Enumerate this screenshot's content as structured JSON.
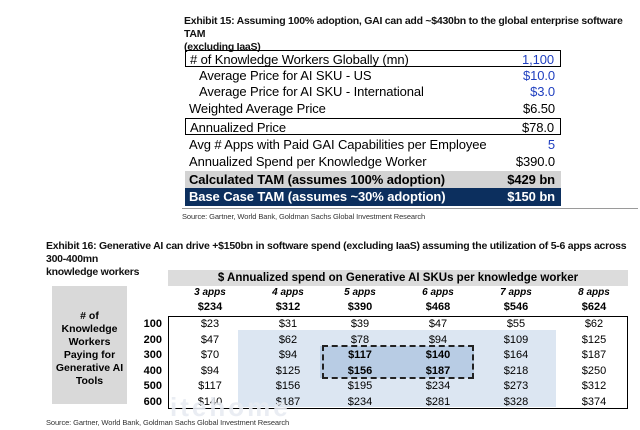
{
  "exhibit15": {
    "title_line1": "Exhibit 15: Assuming 100% adoption, GAI can add ~$430bn to the global enterprise software TAM",
    "title_line2": "(excluding IaaS)",
    "rows": [
      {
        "label": "# of Knowledge Workers Globally (mn)",
        "value": "1,100"
      },
      {
        "label": "Average Price for AI SKU - US",
        "value": "$10.0"
      },
      {
        "label": "Average Price for AI SKU - International",
        "value": "$3.0"
      },
      {
        "label": "Weighted Average Price",
        "value": "$6.50"
      },
      {
        "label": "Annualized Price",
        "value": "$78.0"
      },
      {
        "label": "Avg # Apps with Paid GAI Capabilities per Employee",
        "value": "5"
      },
      {
        "label": "Annualized Spend per Knowledge Worker",
        "value": "$390.0"
      },
      {
        "label": "Calculated TAM (assumes 100% adoption)",
        "value": "$429 bn"
      },
      {
        "label": "Base Case TAM (assumes ~30% adoption)",
        "value": "$150 bn"
      }
    ],
    "source": "Source: Gartner, World Bank, Goldman Sachs Global Investment Research"
  },
  "exhibit16": {
    "title_line1": "Exhibit 16: Generative AI can drive +$150bn in software spend (excluding IaaS) assuming the utilization of 5-6 apps across 300-400mn",
    "title_line2": "knowledge workers",
    "header": "$ Annualized spend on Generative AI SKUs per knowledge worker",
    "columns": [
      {
        "label": "3 apps",
        "value": "$234"
      },
      {
        "label": "4 apps",
        "value": "$312"
      },
      {
        "label": "5 apps",
        "value": "$390"
      },
      {
        "label": "6 apps",
        "value": "$468"
      },
      {
        "label": "7 apps",
        "value": "$546"
      },
      {
        "label": "8 apps",
        "value": "$624"
      }
    ],
    "side_label": [
      "# of",
      "Knowledge",
      "Workers",
      "Paying for",
      "Generative AI",
      "Tools"
    ],
    "rows": [
      {
        "label": "100",
        "cells": [
          "$23",
          "$31",
          "$39",
          "$47",
          "$55",
          "$62"
        ]
      },
      {
        "label": "200",
        "cells": [
          "$47",
          "$62",
          "$78",
          "$94",
          "$109",
          "$125"
        ]
      },
      {
        "label": "300",
        "cells": [
          "$70",
          "$94",
          "$117",
          "$140",
          "$164",
          "$187"
        ]
      },
      {
        "label": "400",
        "cells": [
          "$94",
          "$125",
          "$156",
          "$187",
          "$218",
          "$250"
        ]
      },
      {
        "label": "500",
        "cells": [
          "$117",
          "$156",
          "$195",
          "$234",
          "$273",
          "$312"
        ]
      },
      {
        "label": "600",
        "cells": [
          "$140",
          "$187",
          "$234",
          "$281",
          "$328",
          "$374"
        ]
      }
    ],
    "source": "Source: Gartner, World Bank, Goldman Sachs Global Investment Research",
    "watermark": "itehome"
  }
}
